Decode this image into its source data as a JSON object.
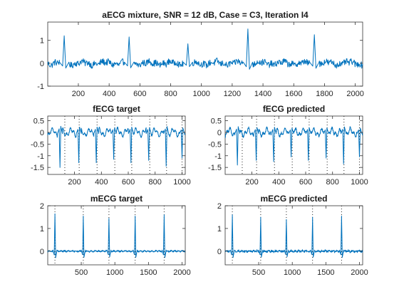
{
  "colors": {
    "signal": "#0072BD",
    "axes": "#262626",
    "background": "#ffffff"
  },
  "chart_data": [
    {
      "id": "aecg",
      "type": "line",
      "title": "aECG mixture, SNR = 12 dB, Case = C3, Iteration I4",
      "xlabel": "",
      "ylabel": "",
      "xlim": [
        1,
        2048
      ],
      "ylim": [
        -1,
        1.8
      ],
      "xticks": [
        200,
        400,
        600,
        800,
        1000,
        1200,
        1400,
        1600,
        1800,
        2000
      ],
      "yticks": [
        -1,
        0,
        1
      ],
      "grid": false,
      "peaks": [
        {
          "x": 108,
          "y": 1.2
        },
        {
          "x": 530,
          "y": 1.15
        },
        {
          "x": 912,
          "y": 0.85
        },
        {
          "x": 1302,
          "y": 1.5
        },
        {
          "x": 1734,
          "y": 1.25
        }
      ],
      "r_markers": []
    },
    {
      "id": "fecg-target",
      "type": "line",
      "title": "fECG target",
      "xlabel": "",
      "ylabel": "",
      "xlim": [
        1,
        1024
      ],
      "ylim": [
        -1.8,
        0.7
      ],
      "xticks": [
        200,
        400,
        600,
        800,
        1000
      ],
      "yticks": [
        -1.5,
        -1,
        -0.5,
        0,
        0.5
      ],
      "grid": false,
      "peaks": [
        {
          "x": 92,
          "y": -1.5
        },
        {
          "x": 232,
          "y": -1.3
        },
        {
          "x": 362,
          "y": -1.3
        },
        {
          "x": 492,
          "y": -1.15
        },
        {
          "x": 620,
          "y": -1.3
        },
        {
          "x": 752,
          "y": -1.2
        },
        {
          "x": 882,
          "y": -1.45
        },
        {
          "x": 1000,
          "y": -1.1
        }
      ],
      "r_markers": [
        128,
        235,
        368,
        500,
        626,
        760,
        885,
        1000
      ]
    },
    {
      "id": "fecg-predicted",
      "type": "line",
      "title": "fECG predicted",
      "xlabel": "",
      "ylabel": "",
      "xlim": [
        1,
        1024
      ],
      "ylim": [
        -1.8,
        0.7
      ],
      "xticks": [
        200,
        400,
        600,
        800,
        1000
      ],
      "yticks": [
        -1.5,
        -1,
        -0.5,
        0,
        0.5
      ],
      "grid": false,
      "peaks": [
        {
          "x": 92,
          "y": -1.4
        },
        {
          "x": 232,
          "y": -1.2
        },
        {
          "x": 362,
          "y": -1.25
        },
        {
          "x": 492,
          "y": -1.05
        },
        {
          "x": 620,
          "y": -1.2
        },
        {
          "x": 752,
          "y": -1.1
        },
        {
          "x": 882,
          "y": -1.35
        },
        {
          "x": 1000,
          "y": -1.05
        }
      ],
      "r_markers": [
        128,
        235,
        368,
        500,
        626,
        760,
        885,
        1000
      ]
    },
    {
      "id": "mecg-target",
      "type": "line",
      "title": "mECG target",
      "xlabel": "",
      "ylabel": "",
      "xlim": [
        1,
        2048
      ],
      "ylim": [
        -0.6,
        2
      ],
      "xticks": [
        500,
        1000,
        1500,
        2000
      ],
      "yticks": [
        0,
        1,
        2
      ],
      "grid": false,
      "peaks": [
        {
          "x": 108,
          "y": 1.65
        },
        {
          "x": 530,
          "y": 1.55
        },
        {
          "x": 912,
          "y": 1.45
        },
        {
          "x": 1302,
          "y": 1.55
        },
        {
          "x": 1734,
          "y": 1.6
        }
      ],
      "r_markers": [
        108,
        530,
        912,
        1302,
        1734
      ]
    },
    {
      "id": "mecg-predicted",
      "type": "line",
      "title": "mECG predicted",
      "xlabel": "",
      "ylabel": "",
      "xlim": [
        1,
        2048
      ],
      "ylim": [
        -0.6,
        2
      ],
      "xticks": [
        500,
        1000,
        1500,
        2000
      ],
      "yticks": [
        0,
        1,
        2
      ],
      "grid": false,
      "peaks": [
        {
          "x": 108,
          "y": 1.6
        },
        {
          "x": 530,
          "y": 1.5
        },
        {
          "x": 912,
          "y": 1.4
        },
        {
          "x": 1302,
          "y": 1.5
        },
        {
          "x": 1734,
          "y": 1.55
        }
      ],
      "r_markers": [
        108,
        530,
        912,
        1302,
        1734
      ]
    }
  ]
}
